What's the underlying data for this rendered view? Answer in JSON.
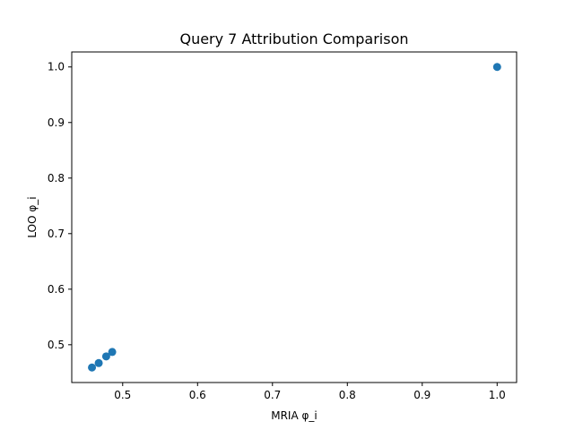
{
  "chart_data": {
    "type": "scatter",
    "title": "Query 7 Attribution Comparison",
    "xlabel": "MRIA φ_i",
    "ylabel": "LOO φ_i",
    "xlim": [
      0.432,
      1.026
    ],
    "ylim": [
      0.432,
      1.027
    ],
    "xticks": [
      0.5,
      0.6,
      0.7,
      0.8,
      0.9,
      1.0
    ],
    "xtick_labels": [
      "0.5",
      "0.6",
      "0.7",
      "0.8",
      "0.9",
      "1.0"
    ],
    "yticks": [
      0.5,
      0.6,
      0.7,
      0.8,
      0.9,
      1.0
    ],
    "ytick_labels": [
      "0.5",
      "0.6",
      "0.7",
      "0.8",
      "0.9",
      "1.0"
    ],
    "grid": false,
    "series": [
      {
        "color": "#1f77b4",
        "points": [
          {
            "x": 0.459,
            "y": 0.459
          },
          {
            "x": 0.468,
            "y": 0.467
          },
          {
            "x": 0.478,
            "y": 0.479
          },
          {
            "x": 0.486,
            "y": 0.487
          },
          {
            "x": 1.0,
            "y": 1.0
          }
        ]
      }
    ]
  }
}
